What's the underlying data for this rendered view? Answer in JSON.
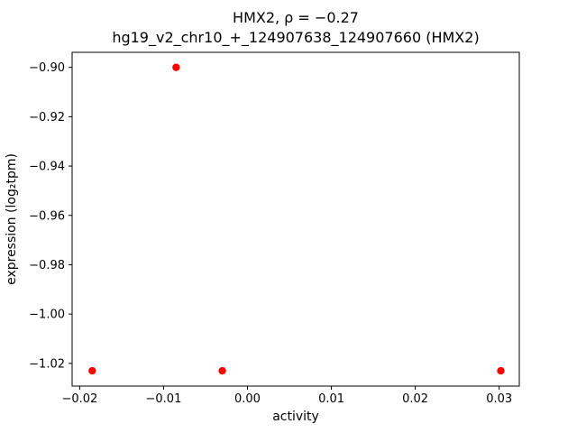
{
  "chart_data": {
    "type": "scatter",
    "title": "HMX2, ρ = −0.27",
    "subtitle": "hg19_v2_chr10_+_124907638_124907660 (HMX2)",
    "xlabel": "activity",
    "ylabel": "expression (log₂tpm)",
    "points": [
      {
        "x": -0.0185,
        "y": -1.023
      },
      {
        "x": -0.0085,
        "y": -0.9
      },
      {
        "x": -0.003,
        "y": -1.023
      },
      {
        "x": 0.0302,
        "y": -1.023
      }
    ],
    "xticks": [
      -0.02,
      -0.01,
      0.0,
      0.01,
      0.02,
      0.03
    ],
    "yticks": [
      -0.9,
      -0.92,
      -0.94,
      -0.96,
      -0.98,
      -1.0,
      -1.02
    ],
    "xlim": [
      -0.0209,
      0.0324
    ],
    "ylim": [
      -1.0292,
      -0.8939
    ],
    "marker_color": "#ff0000",
    "axis_color": "#000000",
    "grid": false,
    "legend": "none"
  }
}
